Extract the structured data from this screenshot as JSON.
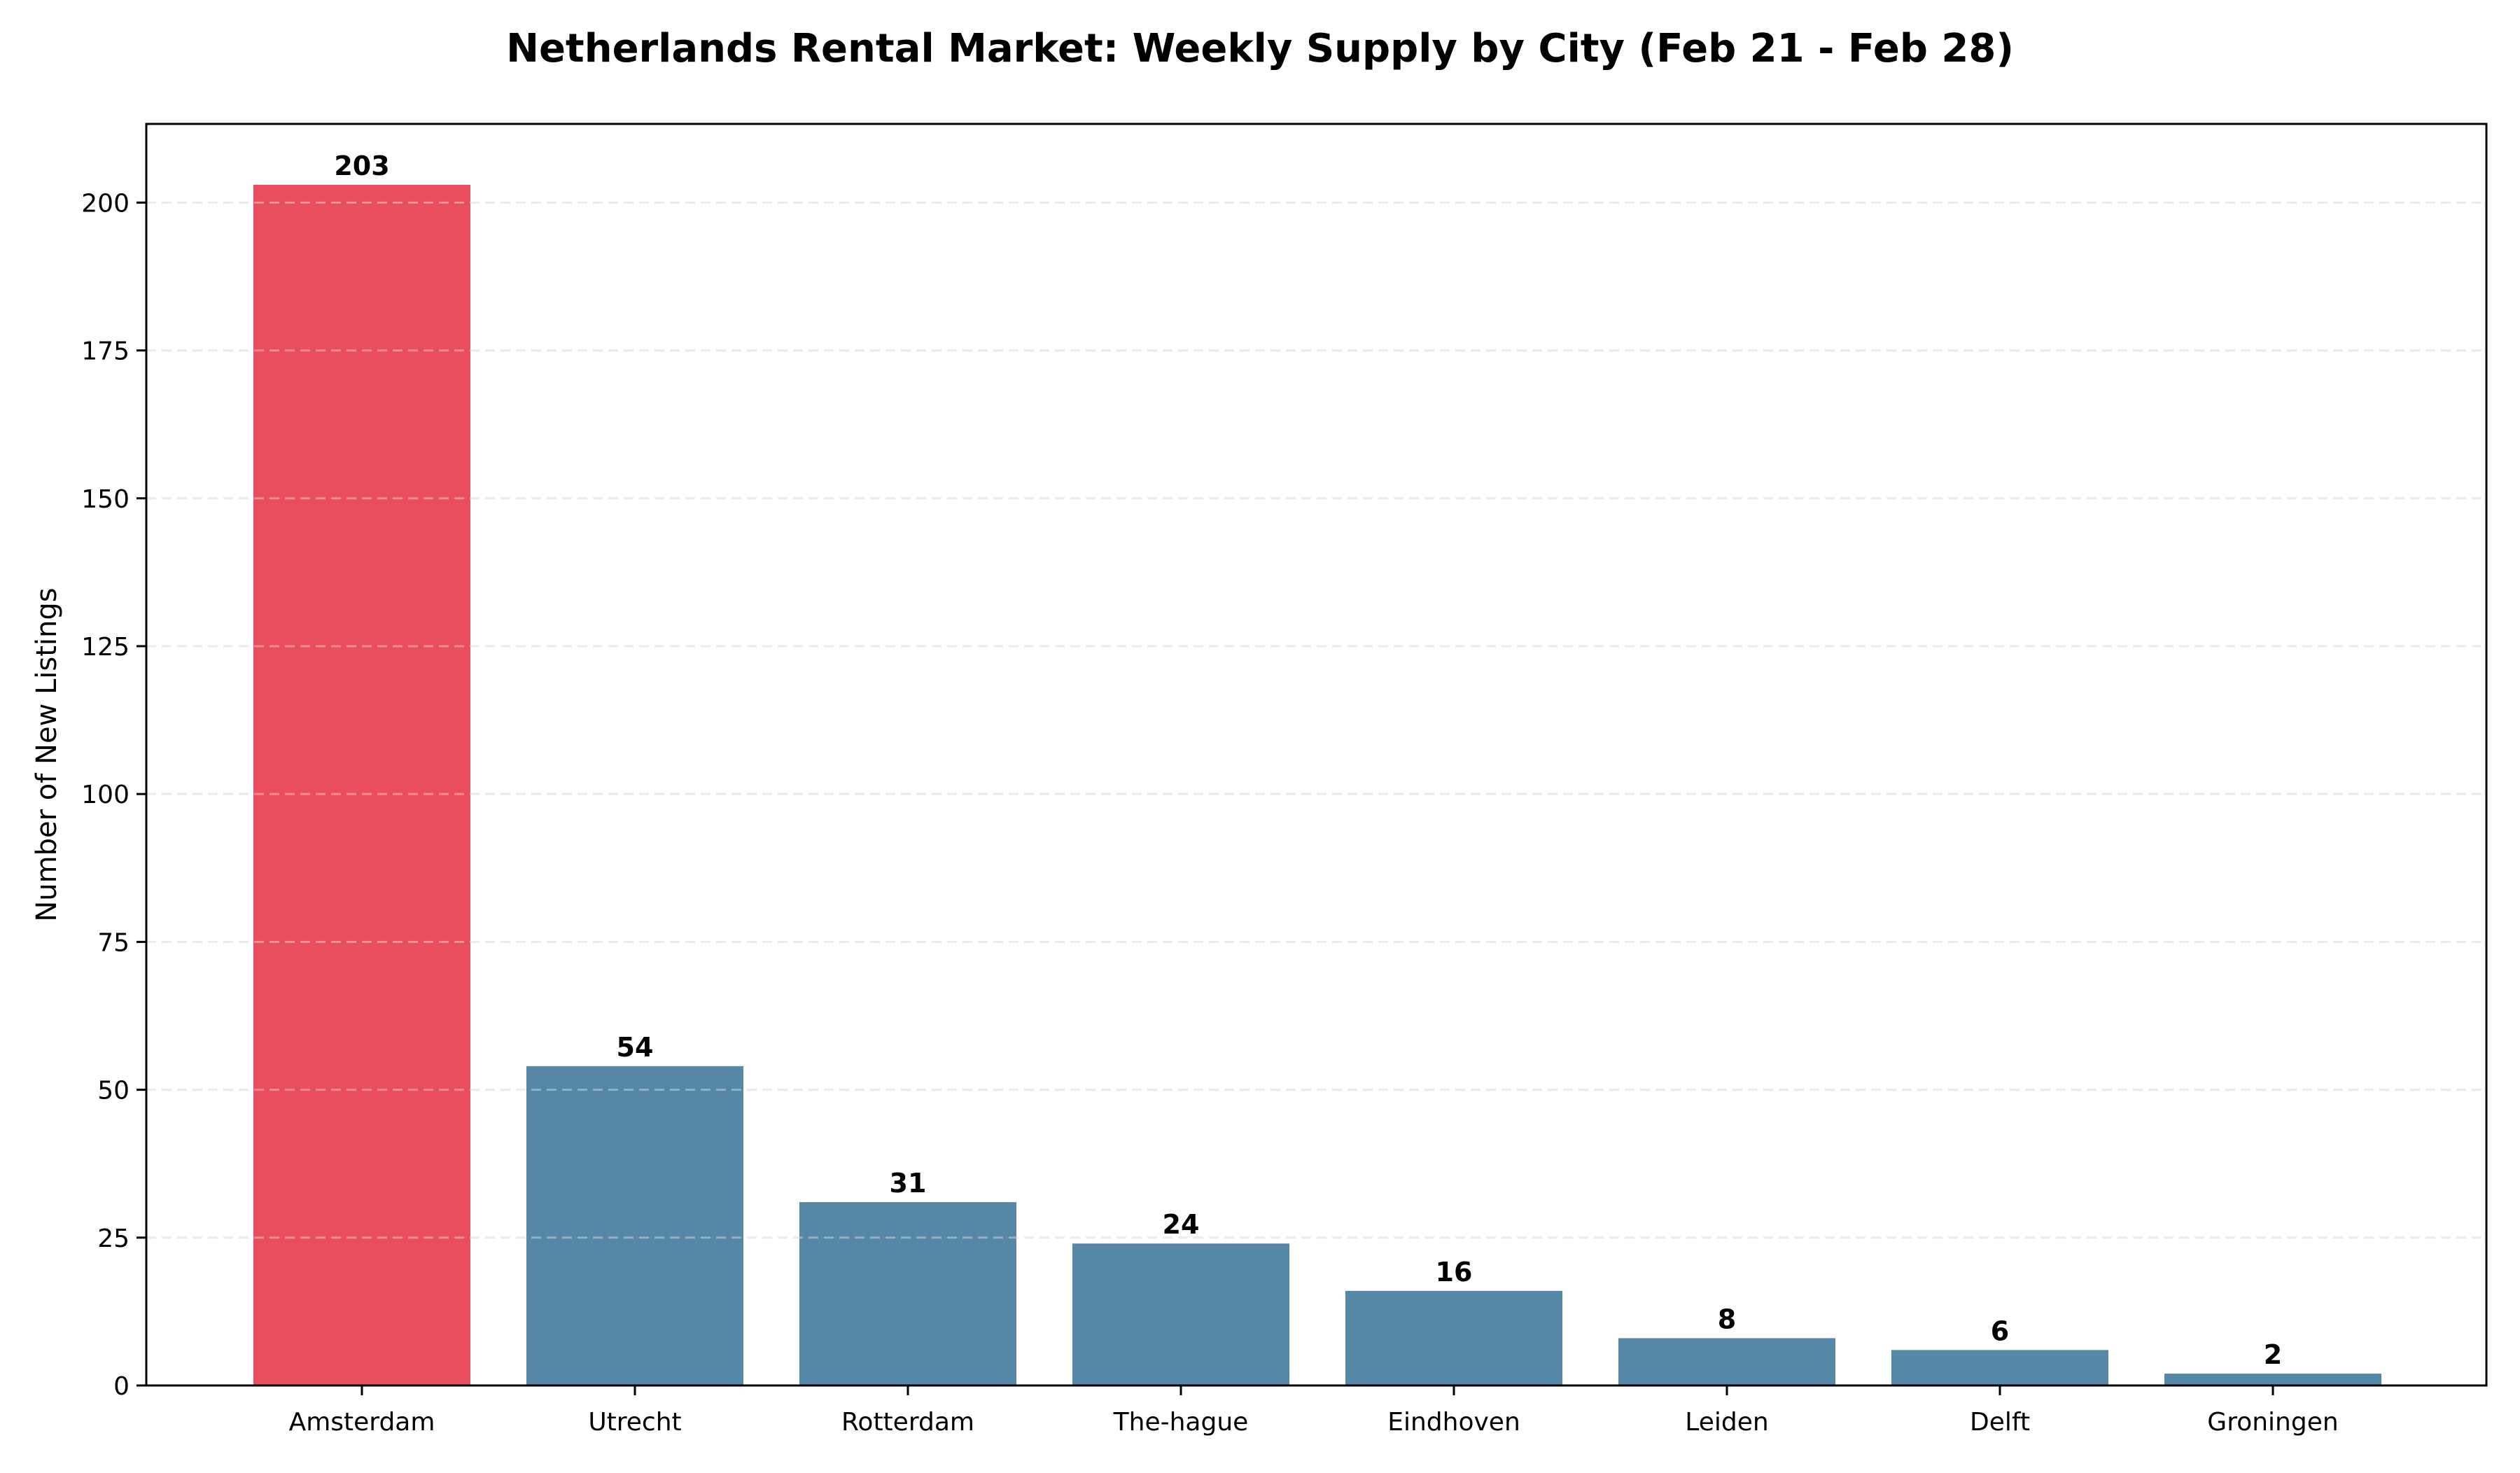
{
  "chart_data": {
    "type": "bar",
    "title": "Netherlands Rental Market: Weekly Supply by City (Feb 21 - Feb 28)",
    "xlabel": "",
    "ylabel": "Number of New Listings",
    "categories": [
      "Amsterdam",
      "Utrecht",
      "Rotterdam",
      "The-hague",
      "Eindhoven",
      "Leiden",
      "Delft",
      "Groningen"
    ],
    "values": [
      203,
      54,
      31,
      24,
      16,
      8,
      6,
      2
    ],
    "data_labels": [
      "203",
      "54",
      "31",
      "24",
      "16",
      "8",
      "6",
      "2"
    ],
    "colors": [
      "#E84E5B",
      "#5787A6",
      "#5787A6",
      "#5787A6",
      "#5787A6",
      "#5787A6",
      "#5787A6",
      "#5787A6"
    ],
    "highlight": {
      "category": "Amsterdam",
      "color": "#E84E5B"
    },
    "bar_color": "#5787A6",
    "ylim": [
      0,
      213.3
    ],
    "yticks": [
      0,
      25,
      50,
      75,
      100,
      125,
      150,
      175,
      200
    ],
    "grid": {
      "axis": "y",
      "style": "dashed",
      "color": "#e0e0e0"
    },
    "legend": null
  }
}
